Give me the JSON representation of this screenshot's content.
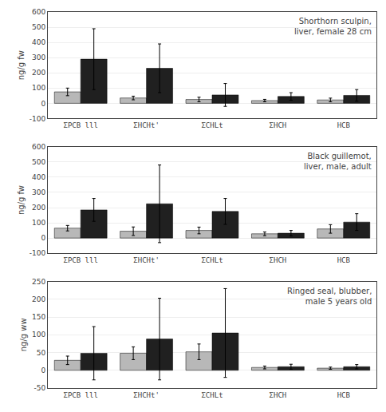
{
  "chart_data": [
    {
      "type": "bar",
      "title": "Shorthorn sculpin,\nliver, female 28 cm",
      "ylabel": "ng/g fw",
      "categories": [
        "ΣPCB lll",
        "ΣHCHt'",
        "ΣCHLt",
        "ΣHCH",
        "HCB"
      ],
      "series": [
        {
          "color": "#b8b8b8",
          "values": [
            75,
            35,
            25,
            18,
            22
          ],
          "errors": [
            25,
            12,
            15,
            8,
            12
          ]
        },
        {
          "color": "#202020",
          "values": [
            290,
            230,
            55,
            45,
            52
          ],
          "errors": [
            200,
            160,
            75,
            25,
            38
          ]
        }
      ],
      "ylim": [
        -100,
        600
      ],
      "yticks": [
        -100,
        0,
        100,
        200,
        300,
        400,
        500,
        600
      ],
      "grid": true
    },
    {
      "type": "bar",
      "title": "Black guillemot,\nliver, male, adult",
      "ylabel": "ng/g fw",
      "categories": [
        "ΣPCB lll",
        "ΣHCHt'",
        "ΣCHLt",
        "ΣHCH",
        "HCB"
      ],
      "series": [
        {
          "color": "#b8b8b8",
          "values": [
            65,
            45,
            50,
            28,
            60
          ],
          "errors": [
            18,
            28,
            22,
            12,
            28
          ]
        },
        {
          "color": "#202020",
          "values": [
            185,
            225,
            175,
            32,
            105
          ],
          "errors": [
            75,
            255,
            85,
            18,
            55
          ]
        }
      ],
      "ylim": [
        -100,
        600
      ],
      "yticks": [
        -100,
        0,
        100,
        200,
        300,
        400,
        500,
        600
      ],
      "grid": true
    },
    {
      "type": "bar",
      "title": "Ringed seal, blubber,\nmale 5 years old",
      "ylabel": "ng/g ww",
      "categories": [
        "ΣPCB lll",
        "ΣHCHt'",
        "ΣCHLt",
        "ΣHCH",
        "HCB"
      ],
      "series": [
        {
          "color": "#b8b8b8",
          "values": [
            28,
            48,
            52,
            8,
            6
          ],
          "errors": [
            12,
            18,
            22,
            4,
            3
          ]
        },
        {
          "color": "#202020",
          "values": [
            48,
            88,
            105,
            10,
            10
          ],
          "errors": [
            75,
            115,
            125,
            7,
            6
          ]
        }
      ],
      "ylim": [
        -50,
        250
      ],
      "yticks": [
        -50,
        0,
        50,
        100,
        150,
        200,
        250
      ],
      "grid": true
    }
  ]
}
